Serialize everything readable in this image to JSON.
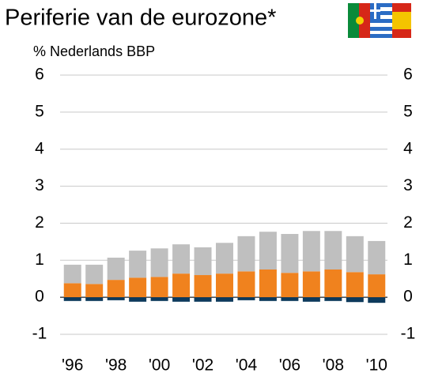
{
  "chart_data": {
    "type": "bar",
    "stacked": true,
    "title": "Periferie van de eurozone*",
    "y_label": "% Nederlands BBP",
    "categories": [
      "'96",
      null,
      "'98",
      null,
      "'00",
      null,
      "'02",
      null,
      "'04",
      null,
      "'06",
      null,
      "'08",
      null,
      "'10"
    ],
    "series": [
      {
        "color": "#f0821e",
        "values": [
          0.38,
          0.36,
          0.47,
          0.53,
          0.55,
          0.64,
          0.6,
          0.64,
          0.7,
          0.75,
          0.66,
          0.7,
          0.75,
          0.68,
          0.62
        ]
      },
      {
        "color": "#bfbfbf",
        "values": [
          0.5,
          0.52,
          0.6,
          0.73,
          0.77,
          0.79,
          0.75,
          0.83,
          0.95,
          1.02,
          1.05,
          1.09,
          1.04,
          0.97,
          0.9
        ]
      },
      {
        "color": "#0d3a5c",
        "values": [
          -0.1,
          -0.1,
          -0.08,
          -0.12,
          -0.1,
          -0.12,
          -0.12,
          -0.12,
          -0.08,
          -0.1,
          -0.1,
          -0.12,
          -0.1,
          -0.13,
          -0.15
        ]
      }
    ],
    "ylim": [
      -1,
      6
    ],
    "yticks": [
      -1,
      0,
      1,
      2,
      3,
      4,
      5,
      6
    ],
    "grid": true
  }
}
